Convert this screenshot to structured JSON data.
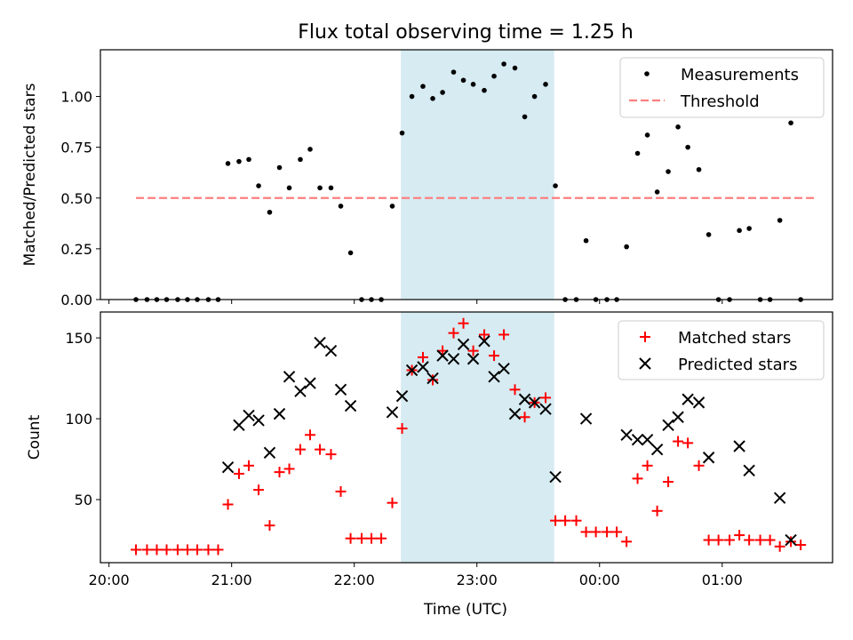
{
  "chart_data": {
    "type": "scatter",
    "title": "Flux total observing time = 1.25 h",
    "xlabel": "Time (UTC)",
    "x_tick_labels": [
      "20:00",
      "21:00",
      "22:00",
      "23:00",
      "00:00",
      "01:00"
    ],
    "x_tick_hours": [
      20,
      21,
      22,
      23,
      24,
      25
    ],
    "xlim": [
      19.93,
      25.9
    ],
    "highlight_span": {
      "start": 22.38,
      "end": 23.63,
      "color": "#add8e6"
    },
    "top_panel": {
      "ylabel": "Matched/Predicted stars",
      "ylim": [
        0,
        1.23
      ],
      "y_ticks": [
        0.0,
        0.25,
        0.5,
        0.75,
        1.0
      ],
      "y_tick_labels": [
        "0.00",
        "0.25",
        "0.50",
        "0.75",
        "1.00"
      ],
      "legend": {
        "position": "top-right",
        "entries": [
          "Measurements",
          "Threshold"
        ]
      },
      "threshold": {
        "name": "Threshold",
        "value": 0.5,
        "x_range": [
          20.22,
          25.75
        ],
        "color": "#ff7f7f"
      },
      "measurements": {
        "name": "Measurements",
        "color": "#000000",
        "x": [
          20.22,
          20.31,
          20.39,
          20.47,
          20.56,
          20.64,
          20.72,
          20.81,
          20.89,
          20.97,
          21.06,
          21.14,
          21.22,
          21.31,
          21.39,
          21.47,
          21.56,
          21.64,
          21.72,
          21.81,
          21.89,
          21.97,
          22.06,
          22.14,
          22.22,
          22.31,
          22.39,
          22.47,
          22.56,
          22.64,
          22.72,
          22.81,
          22.89,
          22.97,
          23.06,
          23.14,
          23.22,
          23.31,
          23.39,
          23.47,
          23.56,
          23.64,
          23.72,
          23.81,
          23.89,
          23.97,
          24.06,
          24.14,
          24.22,
          24.31,
          24.39,
          24.47,
          24.56,
          24.64,
          24.72,
          24.81,
          24.89,
          24.97,
          25.06,
          25.14,
          25.22,
          25.31,
          25.39,
          25.47,
          25.56,
          25.64
        ],
        "y": [
          0,
          0,
          0,
          0,
          0,
          0,
          0,
          0,
          0,
          0.67,
          0.68,
          0.69,
          0.56,
          0.43,
          0.65,
          0.55,
          0.69,
          0.74,
          0.55,
          0.55,
          0.46,
          0.23,
          0,
          0,
          0,
          0.46,
          0.82,
          1.0,
          1.05,
          0.99,
          1.02,
          1.12,
          1.08,
          1.06,
          1.03,
          1.1,
          1.16,
          1.14,
          0.9,
          1.0,
          1.06,
          0.56,
          0,
          0,
          0.29,
          0,
          0,
          0,
          0.26,
          0.72,
          0.81,
          0.53,
          0.63,
          0.85,
          0.75,
          0.64,
          0.32,
          0,
          0,
          0.34,
          0.35,
          0,
          0,
          0.39,
          0.87,
          0
        ]
      }
    },
    "bottom_panel": {
      "ylabel": "Count",
      "ylim": [
        11,
        166
      ],
      "y_ticks": [
        50,
        100,
        150
      ],
      "y_tick_labels": [
        "50",
        "100",
        "150"
      ],
      "legend": {
        "position": "top-right",
        "entries": [
          "Matched stars",
          "Predicted stars"
        ]
      },
      "matched": {
        "name": "Matched stars",
        "color": "#ff0000",
        "x": [
          20.22,
          20.31,
          20.39,
          20.47,
          20.56,
          20.64,
          20.72,
          20.81,
          20.89,
          20.97,
          21.06,
          21.14,
          21.22,
          21.31,
          21.39,
          21.47,
          21.56,
          21.64,
          21.72,
          21.81,
          21.89,
          21.97,
          22.06,
          22.14,
          22.22,
          22.31,
          22.39,
          22.47,
          22.56,
          22.64,
          22.72,
          22.81,
          22.89,
          22.97,
          23.06,
          23.14,
          23.22,
          23.31,
          23.39,
          23.47,
          23.56,
          23.64,
          23.72,
          23.81,
          23.89,
          23.97,
          24.06,
          24.14,
          24.22,
          24.31,
          24.39,
          24.47,
          24.56,
          24.64,
          24.72,
          24.81,
          24.89,
          24.97,
          25.06,
          25.14,
          25.22,
          25.31,
          25.39,
          25.47,
          25.56,
          25.64
        ],
        "y": [
          19,
          19,
          19,
          19,
          19,
          19,
          19,
          19,
          19,
          47,
          66,
          71,
          56,
          34,
          67,
          69,
          81,
          90,
          81,
          78,
          55,
          26,
          26,
          26,
          26,
          48,
          94,
          130,
          138,
          124,
          142,
          153,
          159,
          142,
          152,
          139,
          152,
          118,
          101,
          110,
          113,
          37,
          37,
          37,
          30,
          30,
          30,
          30,
          24,
          63,
          71,
          43,
          61,
          86,
          85,
          71,
          25,
          25,
          25,
          28,
          25,
          25,
          25,
          21,
          24,
          22
        ]
      },
      "predicted": {
        "name": "Predicted stars",
        "color": "#000000",
        "x": [
          20.97,
          21.06,
          21.14,
          21.22,
          21.31,
          21.39,
          21.47,
          21.56,
          21.64,
          21.72,
          21.81,
          21.89,
          21.97,
          22.31,
          22.39,
          22.47,
          22.56,
          22.64,
          22.72,
          22.81,
          22.89,
          22.97,
          23.06,
          23.14,
          23.22,
          23.31,
          23.39,
          23.47,
          23.56,
          23.64,
          23.89,
          24.22,
          24.31,
          24.39,
          24.47,
          24.56,
          24.64,
          24.72,
          24.81,
          24.89,
          25.14,
          25.22,
          25.47,
          25.56
        ],
        "y": [
          70,
          96,
          102,
          99,
          79,
          103,
          126,
          117,
          122,
          147,
          142,
          118,
          108,
          104,
          114,
          130,
          132,
          125,
          139,
          137,
          146,
          137,
          148,
          126,
          131,
          103,
          112,
          110,
          106,
          64,
          100,
          90,
          87,
          87,
          81,
          96,
          101,
          112,
          110,
          76,
          83,
          68,
          51,
          25
        ]
      }
    }
  }
}
